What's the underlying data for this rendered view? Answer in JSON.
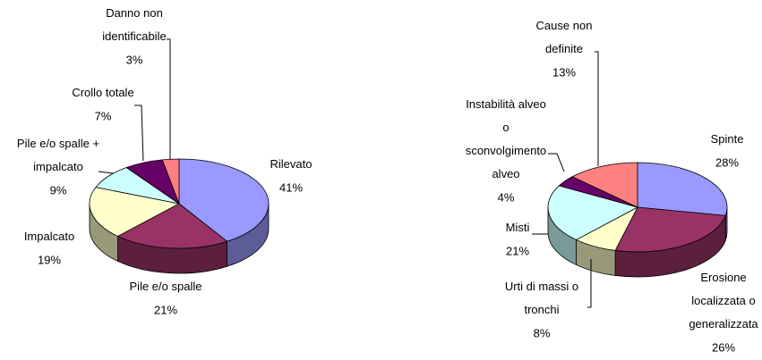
{
  "chart_data": [
    {
      "type": "pie",
      "categories": [
        "Rilevato",
        "Pile e/o spalle",
        "Impalcato",
        "Pile e/o spalle +\nimpalcato",
        "Crollo totale",
        "Danno non\nidentificabile"
      ],
      "values": [
        41,
        21,
        19,
        9,
        7,
        3
      ],
      "value_labels": [
        "41%",
        "21%",
        "19%",
        "9%",
        "7%",
        "3%"
      ],
      "colors": [
        "#9999ff",
        "#993366",
        "#ffffcc",
        "#ccffff",
        "#660066",
        "#ff8080"
      ]
    },
    {
      "type": "pie",
      "categories": [
        "Spinte",
        "Erosione\nlocalizzata o\ngeneralizzata",
        "Urti di massi o\ntronchi",
        "Misti",
        "Instabilità alveo\no\nsconvolgimento\nalveo",
        "Cause non\ndefinite"
      ],
      "values": [
        28,
        26,
        8,
        21,
        4,
        13
      ],
      "value_labels": [
        "28%",
        "26%",
        "8%",
        "21%",
        "4%",
        "13%"
      ],
      "colors": [
        "#9999ff",
        "#993366",
        "#ffffcc",
        "#ccffff",
        "#660066",
        "#ff8080"
      ]
    }
  ]
}
